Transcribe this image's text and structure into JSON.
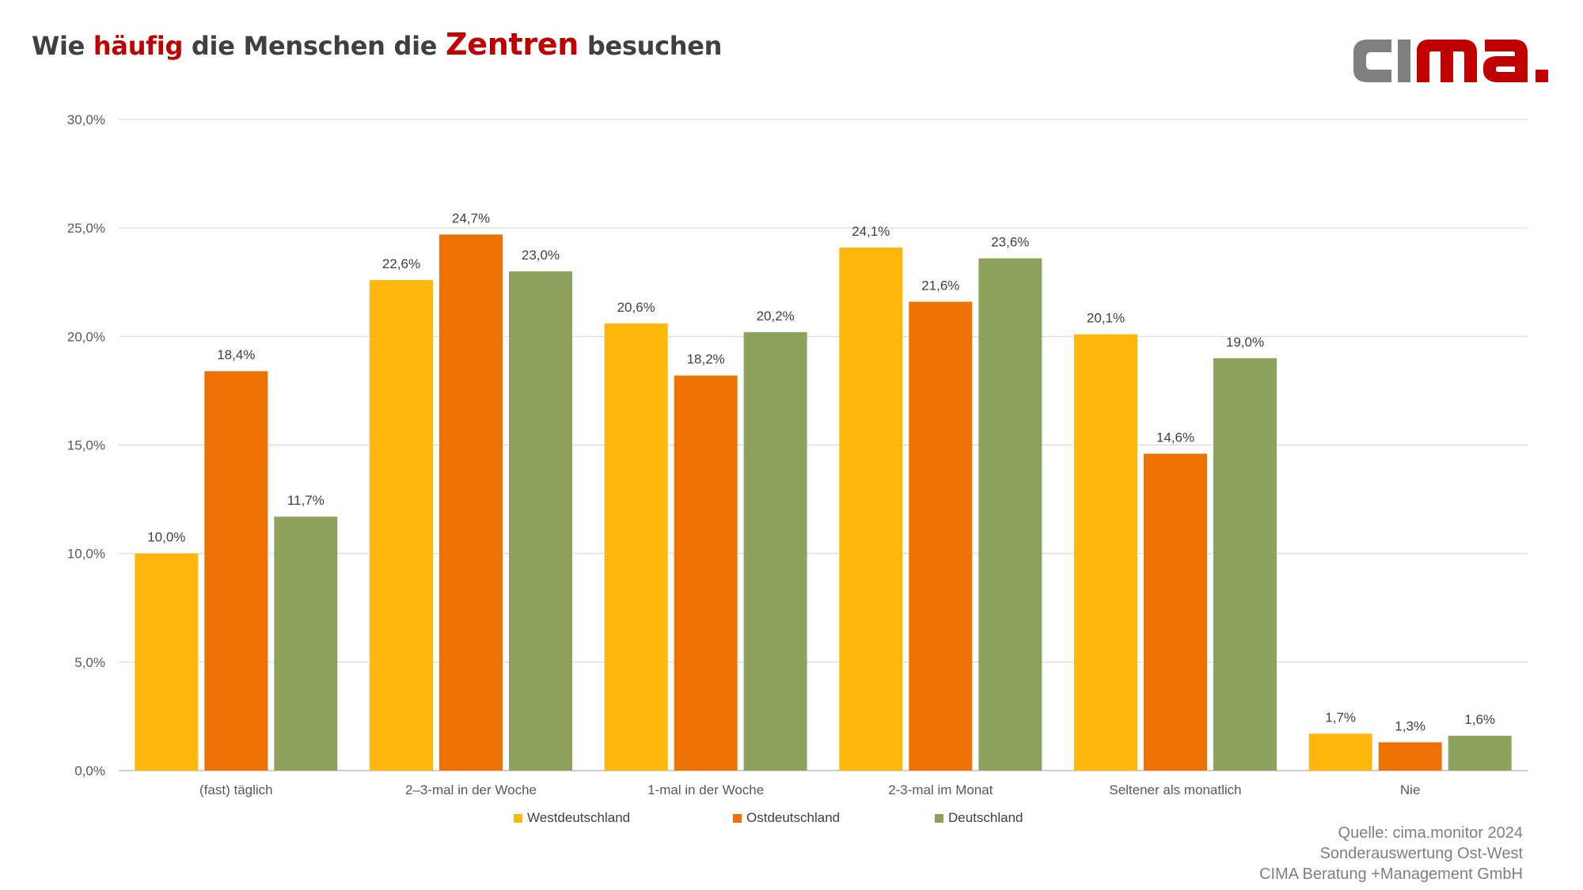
{
  "title": {
    "part1": "Wie ",
    "part2": "häufig",
    "part3": " die Menschen die ",
    "part4": "Zentren",
    "part5": " besuchen"
  },
  "logo": {
    "text_dark": "cı",
    "text_red": "ma.",
    "colors": {
      "gray": "#7f7f7f",
      "red": "#c00000"
    }
  },
  "source": {
    "line1": "Quelle: cima.monitor 2024",
    "line2": "Sonderauswertung Ost-West",
    "line3": "CIMA Beratung +Management GmbH"
  },
  "chart_data": {
    "type": "bar",
    "title": "Wie häufig die Menschen die Zentren besuchen",
    "xlabel": "",
    "ylabel": "",
    "ylim": [
      0,
      30
    ],
    "yticks": [
      0,
      5,
      10,
      15,
      20,
      25,
      30
    ],
    "ytick_labels": [
      "0,0%",
      "5,0%",
      "10,0%",
      "15,0%",
      "20,0%",
      "25,0%",
      "30,0%"
    ],
    "grid": true,
    "legend_position": "bottom",
    "categories": [
      "(fast) täglich",
      "2–3-mal in der Woche",
      "1-mal in der Woche",
      "2-3-mal im Monat",
      "Seltener als monatlich",
      "Nie"
    ],
    "series": [
      {
        "name": "Westdeutschland",
        "color": "#ffb60d",
        "values": [
          10.0,
          22.6,
          20.6,
          24.1,
          20.1,
          1.7
        ],
        "labels": [
          "10,0%",
          "22,6%",
          "20,6%",
          "24,1%",
          "20,1%",
          "1,7%"
        ]
      },
      {
        "name": "Ostdeutschland",
        "color": "#ee7203",
        "values": [
          18.4,
          24.7,
          18.2,
          21.6,
          14.6,
          1.3
        ],
        "labels": [
          "18,4%",
          "24,7%",
          "18,2%",
          "21,6%",
          "14,6%",
          "1,3%"
        ]
      },
      {
        "name": "Deutschland",
        "color": "#8da35d",
        "values": [
          11.7,
          23.0,
          20.2,
          23.6,
          19.0,
          1.6
        ],
        "labels": [
          "11,7%",
          "23,0%",
          "20,2%",
          "23,6%",
          "19,0%",
          "1,6%"
        ]
      }
    ]
  }
}
